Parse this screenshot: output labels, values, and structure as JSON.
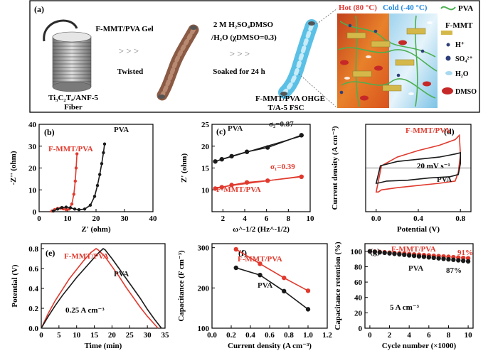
{
  "figure": {
    "panel_a": {
      "label": "(a)",
      "fiber_label_line1": "Ti₃C₂Tₓ/ANF-5",
      "fiber_label_line2": "Fiber",
      "gel_label": "F-MMT/PVA Gel",
      "arrows": "> > >",
      "twisted_label": "Twisted",
      "solution_line1": "2 M H₂SO₄DMSO",
      "solution_line2": "/H₂O (χDMSO=0.3)",
      "soak_label": "Soaked for 24 h",
      "ohge_line1": "F-MMT/PVA OHGE",
      "ohge_line2": "T/A-5 FSC",
      "hot_label": "Hot (80 °C)",
      "cold_label": "Cold (-40 °C)",
      "legend": [
        "PVA",
        "F-MMT",
        "H⁺",
        "SO₄²⁺",
        "H₂O",
        "DMSO"
      ]
    },
    "colors": {
      "pva": "#1a1a1a",
      "fmmt": "#e03a2e",
      "accent_hot": "#e53935",
      "accent_cold": "#1e88e5",
      "fiber_blue": "#5bc0e6",
      "gel_brown": "#8a5a44"
    }
  },
  "chart_data": [
    {
      "panel": "(b)",
      "type": "line",
      "xlabel": "Z' (ohm)",
      "ylabel": "-Z'' (ohm)",
      "xlim": [
        0,
        40
      ],
      "ylim": [
        0,
        40
      ],
      "xticks": [
        0,
        10,
        20,
        30,
        40
      ],
      "yticks": [
        0,
        10,
        20,
        30,
        40
      ],
      "series": [
        {
          "name": "F-MMT/PVA",
          "x": [
            4.5,
            5.5,
            6.5,
            7.5,
            8.5,
            9.5,
            10.5,
            11.5,
            12.2,
            12.7,
            13.0,
            13.3
          ],
          "y": [
            0.3,
            1.0,
            1.5,
            1.6,
            1.3,
            0.9,
            1.2,
            3.5,
            8,
            14,
            20,
            26.5
          ]
        },
        {
          "name": "PVA",
          "x": [
            5,
            6.5,
            8,
            9.5,
            11,
            12.5,
            14,
            16,
            18,
            19.5,
            20.5,
            21.3,
            22,
            22.6,
            23
          ],
          "y": [
            0.3,
            1.2,
            1.9,
            2.1,
            1.8,
            1.2,
            0.9,
            1.2,
            3,
            7,
            12,
            17,
            22,
            27,
            31
          ]
        }
      ]
    },
    {
      "panel": "(c)",
      "type": "scatter",
      "xlabel": "ω^-1/2 (Hz^-1/2)",
      "ylabel": "Z' (ohm)",
      "xlim": [
        1,
        10
      ],
      "ylim": [
        5,
        25
      ],
      "xticks": [
        2,
        4,
        6,
        8,
        10
      ],
      "yticks": [
        10,
        15,
        20,
        25
      ],
      "annotations": [
        "σ₂=0.87",
        "σ₁=0.39"
      ],
      "series": [
        {
          "name": "PVA",
          "x": [
            1.3,
            1.9,
            2.8,
            4.2,
            6.1,
            9.2
          ],
          "y": [
            16.5,
            17.0,
            17.7,
            18.7,
            19.7,
            22.5
          ]
        },
        {
          "name": "F-MMT/PVA",
          "x": [
            1.3,
            1.9,
            2.8,
            4.2,
            6.1,
            9.2
          ],
          "y": [
            10.3,
            10.6,
            11.1,
            11.7,
            12.1,
            13.0
          ]
        }
      ]
    },
    {
      "panel": "(d)",
      "type": "line",
      "xlabel": "Potential (V)",
      "ylabel": "Current density (A cm⁻³)",
      "xlim": [
        -0.1,
        0.9
      ],
      "ylim": [
        -10,
        10
      ],
      "xticks": [
        0.0,
        0.4,
        0.8
      ],
      "xtick_labels": [
        "0.0",
        "0.4",
        "0.8"
      ],
      "annotation": "20 mV s⁻¹",
      "series": [
        {
          "name": "F-MMT/PVA",
          "x": [
            0,
            0.05,
            0.2,
            0.4,
            0.6,
            0.75,
            0.79,
            0.8,
            0.78,
            0.75,
            0.6,
            0.4,
            0.2,
            0.05,
            0.02,
            0
          ],
          "y": [
            -5.5,
            0.5,
            2.5,
            4,
            5.2,
            6.5,
            7.5,
            3,
            -1,
            -3,
            -3.5,
            -4,
            -4.5,
            -5,
            -5.5,
            -5.5
          ]
        },
        {
          "name": "PVA",
          "x": [
            0,
            0.04,
            0.2,
            0.4,
            0.6,
            0.75,
            0.8,
            0.8,
            0.78,
            0.7,
            0.5,
            0.3,
            0.1,
            0.03,
            0
          ],
          "y": [
            -3.5,
            0.5,
            1.5,
            2,
            2.5,
            3.2,
            3.5,
            1,
            -1.5,
            -2,
            -2.3,
            -2.8,
            -3,
            -3.4,
            -3.5
          ]
        }
      ]
    },
    {
      "panel": "(e)",
      "type": "line",
      "xlabel": "Time (min)",
      "ylabel": "Potential (V)",
      "xlim": [
        0,
        35
      ],
      "ylim": [
        0,
        0.85
      ],
      "xticks": [
        0,
        5,
        10,
        15,
        20,
        25,
        30,
        35
      ],
      "yticks": [
        0.0,
        0.2,
        0.4,
        0.6,
        0.8
      ],
      "ytick_labels": [
        "0.0",
        "0.2",
        "0.4",
        "0.6",
        "0.8"
      ],
      "annotation": "0.25 A cm⁻³",
      "series": [
        {
          "name": "F-MMT/PVA",
          "x": [
            0,
            2,
            4,
            6,
            8,
            10,
            12,
            14,
            15.5,
            16,
            18,
            20,
            22,
            24,
            26,
            28,
            30,
            32,
            33
          ],
          "y": [
            0,
            0.15,
            0.28,
            0.39,
            0.5,
            0.59,
            0.68,
            0.76,
            0.8,
            0.79,
            0.72,
            0.62,
            0.52,
            0.41,
            0.31,
            0.21,
            0.12,
            0.04,
            0
          ]
        },
        {
          "name": "PVA",
          "x": [
            0,
            2,
            4,
            6,
            8,
            10,
            12,
            14,
            16,
            17.5,
            18,
            20,
            22,
            24,
            26,
            28,
            30,
            32,
            34
          ],
          "y": [
            0,
            0.12,
            0.23,
            0.33,
            0.42,
            0.51,
            0.59,
            0.67,
            0.75,
            0.8,
            0.79,
            0.7,
            0.6,
            0.5,
            0.4,
            0.3,
            0.19,
            0.09,
            0
          ]
        }
      ]
    },
    {
      "panel": "(f)",
      "type": "line",
      "xlabel": "Current density (A cm⁻³)",
      "ylabel": "Capacitance (F cm⁻³)",
      "xlim": [
        0,
        1.2
      ],
      "ylim": [
        100,
        310
      ],
      "xticks": [
        0.0,
        0.2,
        0.4,
        0.6,
        0.8,
        1.0,
        1.2
      ],
      "yticks": [
        100,
        200,
        300
      ],
      "xtick_labels": [
        "0.0",
        "0.2",
        "0.4",
        "0.6",
        "0.8",
        "1.0",
        "1.2"
      ],
      "series": [
        {
          "name": "F-MMT/PVA",
          "x": [
            0.25,
            0.5,
            0.75,
            1.0
          ],
          "y": [
            296,
            260,
            225,
            193
          ]
        },
        {
          "name": "PVA",
          "x": [
            0.25,
            0.5,
            0.75,
            1.0
          ],
          "y": [
            250,
            232,
            192,
            147
          ]
        }
      ]
    },
    {
      "panel": "(g)",
      "type": "scatter",
      "xlabel": "Cycle number (×1000)",
      "ylabel": "Capacitance retention (%)",
      "xlim": [
        -0.5,
        10.5
      ],
      "ylim": [
        0,
        110
      ],
      "xticks": [
        0,
        2,
        4,
        6,
        8,
        10
      ],
      "yticks": [
        0,
        20,
        40,
        60,
        80,
        100
      ],
      "annotation": "5 A cm⁻³",
      "labels": [
        "91%",
        "87%"
      ],
      "series": [
        {
          "name": "F-MMT/PVA",
          "x": [
            0,
            0.5,
            1,
            1.5,
            2,
            2.5,
            3,
            3.5,
            4,
            4.5,
            5,
            5.5,
            6,
            6.5,
            7,
            7.5,
            8,
            8.5,
            9,
            9.5,
            10
          ],
          "y": [
            100,
            99.6,
            99.2,
            98.8,
            98.3,
            97.9,
            97.4,
            97,
            96.5,
            96,
            95.6,
            95.1,
            94.7,
            94.2,
            93.8,
            93.3,
            92.9,
            92.4,
            91.9,
            91.5,
            91
          ]
        },
        {
          "name": "PVA",
          "x": [
            0,
            0.5,
            1,
            1.5,
            2,
            2.5,
            3,
            3.5,
            4,
            4.5,
            5,
            5.5,
            6,
            6.5,
            7,
            7.5,
            8,
            8.5,
            9,
            9.5,
            10
          ],
          "y": [
            100,
            99.4,
            98.7,
            98.1,
            97.4,
            96.8,
            96.1,
            95.5,
            94.8,
            94.2,
            93.5,
            92.9,
            92.2,
            91.6,
            90.9,
            90.3,
            89.6,
            89,
            88.3,
            87.7,
            87
          ]
        }
      ]
    }
  ]
}
